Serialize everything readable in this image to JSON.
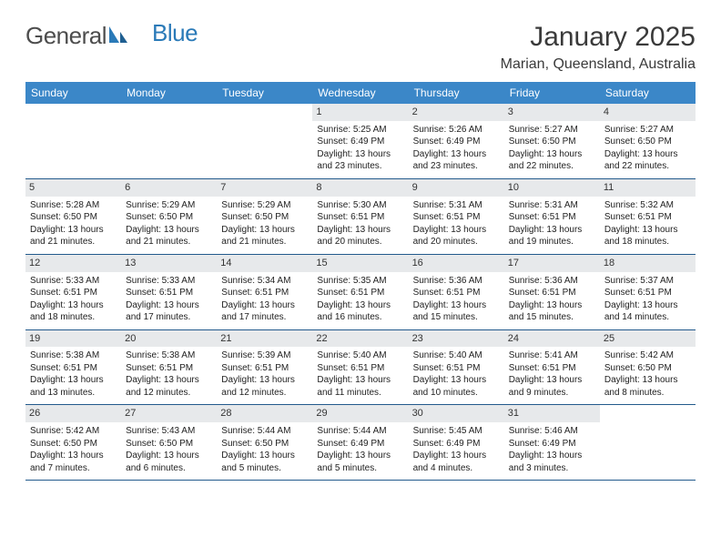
{
  "logo": {
    "general": "General",
    "blue": "Blue"
  },
  "header": {
    "month_year": "January 2025",
    "location": "Marian, Queensland, Australia"
  },
  "colors": {
    "header_bar": "#3b87c8",
    "week_divider": "#235a8c",
    "daynum_bg": "#e7e9eb",
    "text": "#222222",
    "logo_gray": "#4d4d4d",
    "logo_blue": "#2a7ab8"
  },
  "weekdays": [
    "Sunday",
    "Monday",
    "Tuesday",
    "Wednesday",
    "Thursday",
    "Friday",
    "Saturday"
  ],
  "weeks": [
    [
      {
        "n": "",
        "empty": true
      },
      {
        "n": "",
        "empty": true
      },
      {
        "n": "",
        "empty": true
      },
      {
        "n": "1",
        "sunrise": "Sunrise: 5:25 AM",
        "sunset": "Sunset: 6:49 PM",
        "day1": "Daylight: 13 hours",
        "day2": "and 23 minutes."
      },
      {
        "n": "2",
        "sunrise": "Sunrise: 5:26 AM",
        "sunset": "Sunset: 6:49 PM",
        "day1": "Daylight: 13 hours",
        "day2": "and 23 minutes."
      },
      {
        "n": "3",
        "sunrise": "Sunrise: 5:27 AM",
        "sunset": "Sunset: 6:50 PM",
        "day1": "Daylight: 13 hours",
        "day2": "and 22 minutes."
      },
      {
        "n": "4",
        "sunrise": "Sunrise: 5:27 AM",
        "sunset": "Sunset: 6:50 PM",
        "day1": "Daylight: 13 hours",
        "day2": "and 22 minutes."
      }
    ],
    [
      {
        "n": "5",
        "sunrise": "Sunrise: 5:28 AM",
        "sunset": "Sunset: 6:50 PM",
        "day1": "Daylight: 13 hours",
        "day2": "and 21 minutes."
      },
      {
        "n": "6",
        "sunrise": "Sunrise: 5:29 AM",
        "sunset": "Sunset: 6:50 PM",
        "day1": "Daylight: 13 hours",
        "day2": "and 21 minutes."
      },
      {
        "n": "7",
        "sunrise": "Sunrise: 5:29 AM",
        "sunset": "Sunset: 6:50 PM",
        "day1": "Daylight: 13 hours",
        "day2": "and 21 minutes."
      },
      {
        "n": "8",
        "sunrise": "Sunrise: 5:30 AM",
        "sunset": "Sunset: 6:51 PM",
        "day1": "Daylight: 13 hours",
        "day2": "and 20 minutes."
      },
      {
        "n": "9",
        "sunrise": "Sunrise: 5:31 AM",
        "sunset": "Sunset: 6:51 PM",
        "day1": "Daylight: 13 hours",
        "day2": "and 20 minutes."
      },
      {
        "n": "10",
        "sunrise": "Sunrise: 5:31 AM",
        "sunset": "Sunset: 6:51 PM",
        "day1": "Daylight: 13 hours",
        "day2": "and 19 minutes."
      },
      {
        "n": "11",
        "sunrise": "Sunrise: 5:32 AM",
        "sunset": "Sunset: 6:51 PM",
        "day1": "Daylight: 13 hours",
        "day2": "and 18 minutes."
      }
    ],
    [
      {
        "n": "12",
        "sunrise": "Sunrise: 5:33 AM",
        "sunset": "Sunset: 6:51 PM",
        "day1": "Daylight: 13 hours",
        "day2": "and 18 minutes."
      },
      {
        "n": "13",
        "sunrise": "Sunrise: 5:33 AM",
        "sunset": "Sunset: 6:51 PM",
        "day1": "Daylight: 13 hours",
        "day2": "and 17 minutes."
      },
      {
        "n": "14",
        "sunrise": "Sunrise: 5:34 AM",
        "sunset": "Sunset: 6:51 PM",
        "day1": "Daylight: 13 hours",
        "day2": "and 17 minutes."
      },
      {
        "n": "15",
        "sunrise": "Sunrise: 5:35 AM",
        "sunset": "Sunset: 6:51 PM",
        "day1": "Daylight: 13 hours",
        "day2": "and 16 minutes."
      },
      {
        "n": "16",
        "sunrise": "Sunrise: 5:36 AM",
        "sunset": "Sunset: 6:51 PM",
        "day1": "Daylight: 13 hours",
        "day2": "and 15 minutes."
      },
      {
        "n": "17",
        "sunrise": "Sunrise: 5:36 AM",
        "sunset": "Sunset: 6:51 PM",
        "day1": "Daylight: 13 hours",
        "day2": "and 15 minutes."
      },
      {
        "n": "18",
        "sunrise": "Sunrise: 5:37 AM",
        "sunset": "Sunset: 6:51 PM",
        "day1": "Daylight: 13 hours",
        "day2": "and 14 minutes."
      }
    ],
    [
      {
        "n": "19",
        "sunrise": "Sunrise: 5:38 AM",
        "sunset": "Sunset: 6:51 PM",
        "day1": "Daylight: 13 hours",
        "day2": "and 13 minutes."
      },
      {
        "n": "20",
        "sunrise": "Sunrise: 5:38 AM",
        "sunset": "Sunset: 6:51 PM",
        "day1": "Daylight: 13 hours",
        "day2": "and 12 minutes."
      },
      {
        "n": "21",
        "sunrise": "Sunrise: 5:39 AM",
        "sunset": "Sunset: 6:51 PM",
        "day1": "Daylight: 13 hours",
        "day2": "and 12 minutes."
      },
      {
        "n": "22",
        "sunrise": "Sunrise: 5:40 AM",
        "sunset": "Sunset: 6:51 PM",
        "day1": "Daylight: 13 hours",
        "day2": "and 11 minutes."
      },
      {
        "n": "23",
        "sunrise": "Sunrise: 5:40 AM",
        "sunset": "Sunset: 6:51 PM",
        "day1": "Daylight: 13 hours",
        "day2": "and 10 minutes."
      },
      {
        "n": "24",
        "sunrise": "Sunrise: 5:41 AM",
        "sunset": "Sunset: 6:51 PM",
        "day1": "Daylight: 13 hours",
        "day2": "and 9 minutes."
      },
      {
        "n": "25",
        "sunrise": "Sunrise: 5:42 AM",
        "sunset": "Sunset: 6:50 PM",
        "day1": "Daylight: 13 hours",
        "day2": "and 8 minutes."
      }
    ],
    [
      {
        "n": "26",
        "sunrise": "Sunrise: 5:42 AM",
        "sunset": "Sunset: 6:50 PM",
        "day1": "Daylight: 13 hours",
        "day2": "and 7 minutes."
      },
      {
        "n": "27",
        "sunrise": "Sunrise: 5:43 AM",
        "sunset": "Sunset: 6:50 PM",
        "day1": "Daylight: 13 hours",
        "day2": "and 6 minutes."
      },
      {
        "n": "28",
        "sunrise": "Sunrise: 5:44 AM",
        "sunset": "Sunset: 6:50 PM",
        "day1": "Daylight: 13 hours",
        "day2": "and 5 minutes."
      },
      {
        "n": "29",
        "sunrise": "Sunrise: 5:44 AM",
        "sunset": "Sunset: 6:49 PM",
        "day1": "Daylight: 13 hours",
        "day2": "and 5 minutes."
      },
      {
        "n": "30",
        "sunrise": "Sunrise: 5:45 AM",
        "sunset": "Sunset: 6:49 PM",
        "day1": "Daylight: 13 hours",
        "day2": "and 4 minutes."
      },
      {
        "n": "31",
        "sunrise": "Sunrise: 5:46 AM",
        "sunset": "Sunset: 6:49 PM",
        "day1": "Daylight: 13 hours",
        "day2": "and 3 minutes."
      },
      {
        "n": "",
        "empty": true
      }
    ]
  ]
}
